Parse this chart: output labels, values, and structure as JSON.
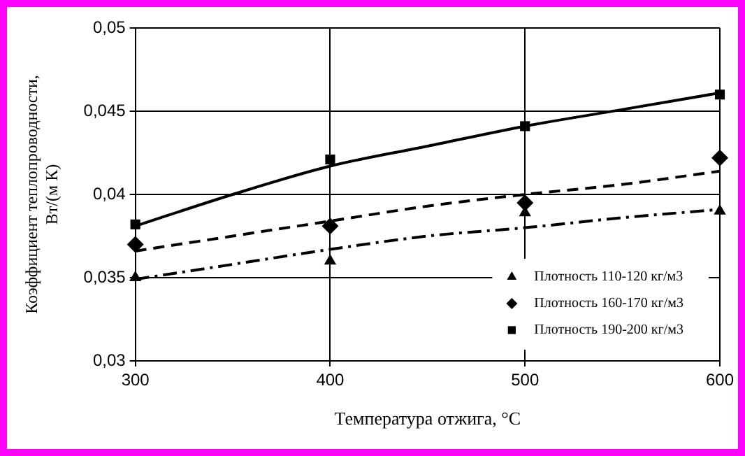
{
  "chart_data": {
    "type": "scatter",
    "xlabel": "Температура отжига, °C",
    "ylabel": "Коэффициент теплопроводности,\nВт/(м К)",
    "xlim": [
      300,
      600
    ],
    "xticks": [
      300,
      400,
      500,
      600
    ],
    "ylim": [
      0.03,
      0.05
    ],
    "yticks": [
      {
        "value": 0.03,
        "label": "0,03"
      },
      {
        "value": 0.035,
        "label": "0,035"
      },
      {
        "value": 0.04,
        "label": "0,04"
      },
      {
        "value": 0.045,
        "label": "0,045"
      },
      {
        "value": 0.05,
        "label": "0,05"
      }
    ],
    "grid": true,
    "legend": "bottom right",
    "series": [
      {
        "name": "Плотность 110-120 кг/м3",
        "marker": "triangle",
        "color": "#000000",
        "x": [
          300,
          400,
          500,
          600
        ],
        "values": [
          0.035,
          0.036,
          0.0389,
          0.039
        ]
      },
      {
        "name": "Плотность 160-170 кг/м3",
        "marker": "diamond",
        "color": "#000000",
        "x": [
          300,
          400,
          500,
          600
        ],
        "values": [
          0.037,
          0.0381,
          0.0395,
          0.0422
        ]
      },
      {
        "name": "Плотность 190-200 кг/м3",
        "marker": "square",
        "color": "#000000",
        "x": [
          300,
          400,
          500,
          600
        ],
        "values": [
          0.0382,
          0.0421,
          0.0441,
          0.046
        ]
      },
      {
        "type": "line",
        "marker": "none",
        "line_style": "dashdot",
        "color": "#000000",
        "x": [
          300,
          350,
          400,
          450,
          500,
          550,
          600
        ],
        "values": [
          0.0349,
          0.0358,
          0.0367,
          0.0375,
          0.038,
          0.0386,
          0.0391
        ]
      },
      {
        "type": "line",
        "marker": "none",
        "line_style": "dashed",
        "color": "#000000",
        "x": [
          300,
          350,
          400,
          450,
          500,
          550,
          600
        ],
        "values": [
          0.0366,
          0.0375,
          0.0384,
          0.0393,
          0.04,
          0.0406,
          0.0414
        ]
      },
      {
        "type": "line",
        "marker": "none",
        "line_style": "solid",
        "color": "#000000",
        "x": [
          300,
          350,
          400,
          450,
          500,
          550,
          600
        ],
        "values": [
          0.0381,
          0.04,
          0.0417,
          0.0429,
          0.0441,
          0.0451,
          0.0461
        ]
      }
    ]
  }
}
